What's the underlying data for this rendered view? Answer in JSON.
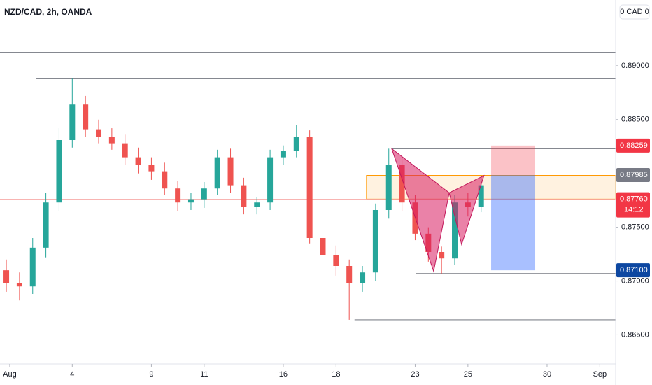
{
  "chart_data": {
    "type": "candlestick",
    "title": "NZD/CAD, 2h, OANDA",
    "currency": "0 CAD 0",
    "up_color": "#26a69a",
    "down_color": "#ef5350",
    "x": [
      -0.5,
      0,
      0.5,
      1,
      1.5,
      2,
      2.5,
      3,
      3.5,
      4,
      4.5,
      5,
      5.5,
      6,
      6.5,
      7,
      7.5,
      8,
      8.5,
      9,
      9.5,
      10,
      10.5,
      11,
      11.5,
      12,
      12.5,
      13,
      13.5,
      14,
      14.5,
      15,
      15.5,
      16,
      16.5,
      17,
      17.5
    ],
    "open": [
      0.871,
      0.8698,
      0.8695,
      0.8731,
      0.8773,
      0.8831,
      0.8864,
      0.8841,
      0.8834,
      0.8828,
      0.8815,
      0.8808,
      0.8802,
      0.8786,
      0.8773,
      0.8776,
      0.8786,
      0.8815,
      0.8789,
      0.8769,
      0.8773,
      0.8815,
      0.8821,
      0.8834,
      0.874,
      0.8724,
      0.8714,
      0.8698,
      0.8708,
      0.8766,
      0.8808,
      0.8773,
      0.8744,
      0.8727,
      0.8721,
      0.8773,
      0.8769
    ],
    "high": [
      0.872,
      0.8708,
      0.874,
      0.8782,
      0.8842,
      0.8888,
      0.8872,
      0.885,
      0.8842,
      0.8836,
      0.8824,
      0.8815,
      0.881,
      0.8793,
      0.8782,
      0.8792,
      0.8822,
      0.8823,
      0.8796,
      0.8778,
      0.8822,
      0.8826,
      0.8845,
      0.884,
      0.8748,
      0.8733,
      0.872,
      0.8714,
      0.8772,
      0.8823,
      0.8815,
      0.878,
      0.875,
      0.8732,
      0.878,
      0.8782,
      0.8798
    ],
    "low": [
      0.869,
      0.8682,
      0.8688,
      0.8722,
      0.8765,
      0.8824,
      0.8834,
      0.8828,
      0.8822,
      0.8808,
      0.88,
      0.8794,
      0.878,
      0.8765,
      0.8766,
      0.8768,
      0.878,
      0.8782,
      0.8762,
      0.8762,
      0.8766,
      0.8808,
      0.8815,
      0.8735,
      0.8716,
      0.8705,
      0.8664,
      0.869,
      0.87,
      0.8758,
      0.8765,
      0.8738,
      0.8718,
      0.8707,
      0.8715,
      0.876,
      0.8764
    ],
    "close": [
      0.8698,
      0.8695,
      0.8731,
      0.8773,
      0.8831,
      0.8864,
      0.8841,
      0.8834,
      0.8828,
      0.8815,
      0.8808,
      0.8802,
      0.8786,
      0.8773,
      0.8776,
      0.8786,
      0.8815,
      0.8789,
      0.8769,
      0.8773,
      0.8815,
      0.8821,
      0.8834,
      0.874,
      0.8724,
      0.8714,
      0.8698,
      0.8708,
      0.8766,
      0.8808,
      0.8773,
      0.8744,
      0.8727,
      0.8721,
      0.8773,
      0.8769,
      0.8789
    ],
    "xlim": [
      -0.74,
      22.6
    ],
    "xticks": [
      {
        "value": -0.37,
        "label": "Aug"
      },
      {
        "value": 2,
        "label": "4"
      },
      {
        "value": 5,
        "label": "9"
      },
      {
        "value": 7,
        "label": "11"
      },
      {
        "value": 10,
        "label": "16"
      },
      {
        "value": 12,
        "label": "18"
      },
      {
        "value": 15,
        "label": "23"
      },
      {
        "value": 17,
        "label": "25"
      },
      {
        "value": 20,
        "label": "30"
      },
      {
        "value": 22,
        "label": "Sep"
      }
    ],
    "ylim": [
      0.8623,
      0.8961
    ],
    "yticks": [
      {
        "value": 0.89,
        "label": "0.89000"
      },
      {
        "value": 0.885,
        "label": "0.88500"
      },
      {
        "value": 0.875,
        "label": "0.87500"
      },
      {
        "value": 0.87,
        "label": "0.87000"
      },
      {
        "value": 0.865,
        "label": "0.86500"
      }
    ],
    "levels": [
      {
        "x0": -0.74,
        "price": 0.8912
      },
      {
        "x0": 0.64,
        "price": 0.8888
      },
      {
        "x0": 10.34,
        "price": 0.8845
      },
      {
        "x0": 14.11,
        "price": 0.8823
      },
      {
        "x0": 15.04,
        "price": 0.8707
      },
      {
        "x0": 12.7,
        "price": 0.8664
      }
    ],
    "zone": {
      "x0": 13.16,
      "top": 0.8798,
      "bottom": 0.8776
    },
    "pattern": {
      "x": [
        14.11,
        15.7,
        16.29,
        16.76,
        17.61
      ],
      "price": [
        0.8823,
        0.8709,
        0.8782,
        0.8734,
        0.8798
      ]
    },
    "position": {
      "x0": 17.88,
      "x1": 19.55,
      "stop": {
        "value": 0.88259,
        "label": "0.88259"
      },
      "entry": {
        "value": 0.87985,
        "label": "0.87985"
      },
      "target": {
        "value": 0.871,
        "label": "0.87100"
      }
    },
    "current_price": {
      "value": 0.8776,
      "label": "0.87760",
      "countdown": "14:12"
    }
  }
}
